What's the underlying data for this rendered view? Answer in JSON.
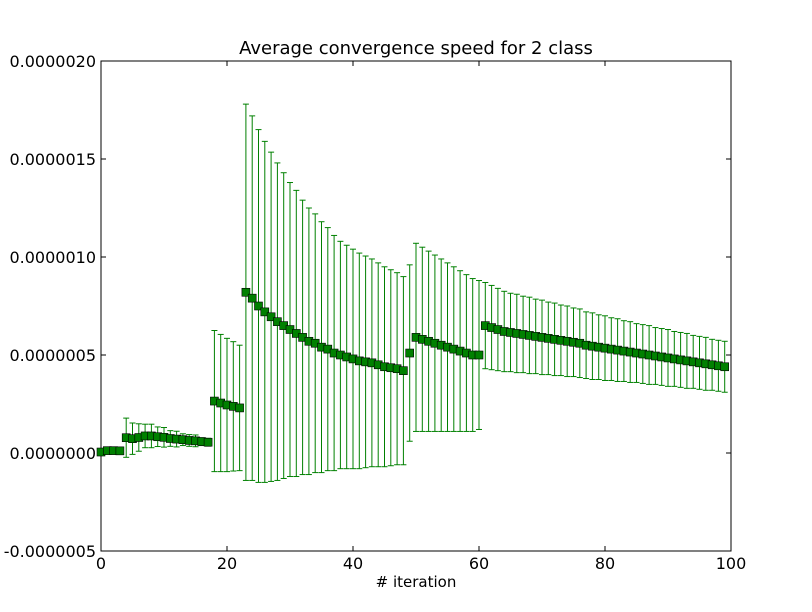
{
  "chart_data": {
    "type": "scatter",
    "title": "Average convergence speed for 2 class",
    "xlabel": "# iteration",
    "ylabel": "",
    "xlim": [
      0,
      100
    ],
    "ylim": [
      -5e-07,
      2e-06
    ],
    "x_ticks": [
      0,
      20,
      40,
      60,
      80,
      100
    ],
    "x_tick_labels": [
      "0",
      "20",
      "40",
      "60",
      "80",
      "100"
    ],
    "y_ticks": [
      -5e-07,
      0,
      5e-07,
      1e-06,
      1.5e-06,
      2e-06
    ],
    "y_tick_labels": [
      "-0.0000005",
      "0.0000000",
      "0.0000005",
      "0.0000010",
      "0.0000015",
      "0.0000020"
    ],
    "grid": false,
    "legend": "none",
    "series": [
      {
        "marker": "square",
        "marker_color": "#008000",
        "errorbar_color": "#008000",
        "x": [
          0,
          1,
          2,
          3,
          4,
          5,
          6,
          7,
          8,
          9,
          10,
          11,
          12,
          13,
          14,
          15,
          16,
          17,
          18,
          19,
          20,
          21,
          22,
          23,
          24,
          25,
          26,
          27,
          28,
          29,
          30,
          31,
          32,
          33,
          34,
          35,
          36,
          37,
          38,
          39,
          40,
          41,
          42,
          43,
          44,
          45,
          46,
          47,
          48,
          49,
          50,
          51,
          52,
          53,
          54,
          55,
          56,
          57,
          58,
          59,
          60,
          61,
          62,
          63,
          64,
          65,
          66,
          67,
          68,
          69,
          70,
          71,
          72,
          73,
          74,
          75,
          76,
          77,
          78,
          79,
          80,
          81,
          82,
          83,
          84,
          85,
          86,
          87,
          88,
          89,
          90,
          91,
          92,
          93,
          94,
          95,
          96,
          97,
          98,
          99
        ],
        "y": [
          5e-09,
          1.2e-08,
          1.2e-08,
          1.1e-08,
          7.8e-08,
          7.3e-08,
          7.9e-08,
          8.7e-08,
          8.7e-08,
          8.3e-08,
          8e-08,
          7.4e-08,
          7.1e-08,
          6.8e-08,
          6.4e-08,
          6.2e-08,
          5.8e-08,
          5.5e-08,
          2.65e-07,
          2.55e-07,
          2.45e-07,
          2.38e-07,
          2.3e-07,
          8.2e-07,
          7.9e-07,
          7.5e-07,
          7.2e-07,
          6.95e-07,
          6.7e-07,
          6.5e-07,
          6.3e-07,
          6.1e-07,
          5.9e-07,
          5.7e-07,
          5.6e-07,
          5.4e-07,
          5.3e-07,
          5.1e-07,
          5e-07,
          4.9e-07,
          4.8e-07,
          4.7e-07,
          4.65e-07,
          4.6e-07,
          4.5e-07,
          4.4e-07,
          4.35e-07,
          4.3e-07,
          4.2e-07,
          5.1e-07,
          5.9e-07,
          5.8e-07,
          5.7e-07,
          5.6e-07,
          5.5e-07,
          5.4e-07,
          5.3e-07,
          5.2e-07,
          5.1e-07,
          5e-07,
          5e-07,
          6.5e-07,
          6.4e-07,
          6.3e-07,
          6.2e-07,
          6.15e-07,
          6.1e-07,
          6.05e-07,
          6e-07,
          5.95e-07,
          5.9e-07,
          5.85e-07,
          5.8e-07,
          5.75e-07,
          5.7e-07,
          5.65e-07,
          5.6e-07,
          5.5e-07,
          5.45e-07,
          5.4e-07,
          5.35e-07,
          5.3e-07,
          5.25e-07,
          5.2e-07,
          5.15e-07,
          5.1e-07,
          5.05e-07,
          5e-07,
          4.95e-07,
          4.9e-07,
          4.85e-07,
          4.8e-07,
          4.75e-07,
          4.7e-07,
          4.65e-07,
          4.6e-07,
          4.55e-07,
          4.5e-07,
          4.45e-07,
          4.4e-07
        ],
        "error": [
          0,
          0,
          0,
          0,
          1e-07,
          8e-08,
          7e-08,
          6e-08,
          6e-08,
          5e-08,
          5e-08,
          4e-08,
          4e-08,
          3e-08,
          3e-08,
          3e-08,
          2e-08,
          2e-08,
          3.6e-07,
          3.5e-07,
          3.4e-07,
          3.3e-07,
          3.2e-07,
          9.6e-07,
          9.3e-07,
          9e-07,
          8.7e-07,
          8.4e-07,
          8.1e-07,
          7.8e-07,
          7.5e-07,
          7.3e-07,
          7e-07,
          6.8e-07,
          6.6e-07,
          6.4e-07,
          6.2e-07,
          6e-07,
          5.8e-07,
          5.7e-07,
          5.6e-07,
          5.5e-07,
          5.4e-07,
          5.3e-07,
          5.2e-07,
          5.1e-07,
          5e-07,
          4.9e-07,
          4.8e-07,
          4.5e-07,
          4.8e-07,
          4.7e-07,
          4.6e-07,
          4.5e-07,
          4.4e-07,
          4.3e-07,
          4.2e-07,
          4.1e-07,
          4e-07,
          3.9e-07,
          3.8e-07,
          2.2e-07,
          2.15e-07,
          2.1e-07,
          2.05e-07,
          2e-07,
          2e-07,
          1.95e-07,
          1.95e-07,
          1.9e-07,
          1.9e-07,
          1.85e-07,
          1.85e-07,
          1.8e-07,
          1.8e-07,
          1.75e-07,
          1.75e-07,
          1.7e-07,
          1.7e-07,
          1.65e-07,
          1.65e-07,
          1.6e-07,
          1.6e-07,
          1.55e-07,
          1.55e-07,
          1.5e-07,
          1.5e-07,
          1.5e-07,
          1.45e-07,
          1.45e-07,
          1.45e-07,
          1.4e-07,
          1.4e-07,
          1.4e-07,
          1.35e-07,
          1.35e-07,
          1.35e-07,
          1.3e-07,
          1.3e-07,
          1.3e-07
        ]
      }
    ]
  }
}
